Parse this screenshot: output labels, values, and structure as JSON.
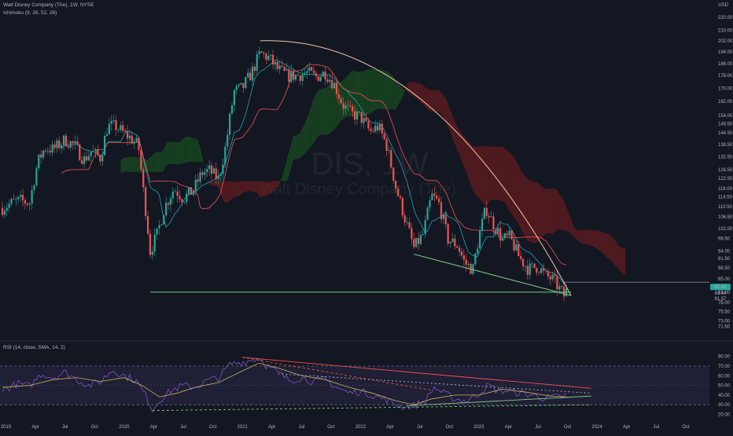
{
  "header": {
    "title": "Walt Disney Company (The), 1W, NYSE",
    "ichimoku_label": "Ichimoku (9, 26, 52, 26)",
    "rsi_label": "RSI (14, close, SMA, 14, 2)",
    "currency": "USD"
  },
  "watermark": {
    "symbol": "DIS, 1W",
    "name": "Walt Disney Company (The)"
  },
  "colors": {
    "background": "#131722",
    "candle_up": "#26a69a",
    "candle_down": "#ef5350",
    "kumo_bull": "#1b5e20",
    "kumo_bear": "#7f1d1d",
    "tenkan": "#26c6da",
    "kijun": "#ef5350",
    "trend_top": "#f5c6a5",
    "trend_bottom": "#81c784",
    "rsi_line": "#7e57c2",
    "rsi_ma": "#c9b458",
    "rsi_band": "#7e57c2",
    "price_badge": "#26a69a"
  },
  "chart_data": [
    {
      "type": "candlestick",
      "title": "Walt Disney Company (The), 1W, NYSE",
      "ylabel": "USD",
      "scale": "log",
      "ylim": [
        69,
        220
      ],
      "y_ticks": [
        71.5,
        73.0,
        75.5,
        78.0,
        81.0,
        85.0,
        88.5,
        91.5,
        94.0,
        98.5,
        102.0,
        106.5,
        110.5,
        114.5,
        118.0,
        122.5,
        126.5,
        132.5,
        138.5,
        144.5,
        149.5,
        154.0,
        162.0,
        170.0,
        178.0,
        186.0,
        194.0,
        202.0,
        210.0,
        220.0
      ],
      "x_ticks": [
        "2019",
        "Apr",
        "Jul",
        "Oct",
        "2020",
        "Apr",
        "Jul",
        "Oct",
        "2021",
        "Apr",
        "Jul",
        "Oct",
        "2022",
        "Apr",
        "Jul",
        "Oct",
        "2023",
        "Apr",
        "Jul",
        "Oct",
        "2024",
        "Apr",
        "Jul",
        "Oct"
      ],
      "xlim": [
        2018.95,
        2024.95
      ],
      "close_path": [
        [
          2018.97,
          110
        ],
        [
          2019.05,
          112
        ],
        [
          2019.12,
          113
        ],
        [
          2019.2,
          112
        ],
        [
          2019.27,
          130
        ],
        [
          2019.33,
          137
        ],
        [
          2019.4,
          136
        ],
        [
          2019.5,
          141
        ],
        [
          2019.58,
          138
        ],
        [
          2019.66,
          131
        ],
        [
          2019.72,
          135
        ],
        [
          2019.8,
          132
        ],
        [
          2019.86,
          148
        ],
        [
          2019.93,
          148
        ],
        [
          2020.0,
          144
        ],
        [
          2020.05,
          142
        ],
        [
          2020.12,
          138
        ],
        [
          2020.16,
          118
        ],
        [
          2020.22,
          94
        ],
        [
          2020.28,
          100
        ],
        [
          2020.34,
          110
        ],
        [
          2020.42,
          118
        ],
        [
          2020.5,
          114
        ],
        [
          2020.58,
          117
        ],
        [
          2020.66,
          125
        ],
        [
          2020.72,
          126
        ],
        [
          2020.8,
          122
        ],
        [
          2020.86,
          138
        ],
        [
          2020.93,
          168
        ],
        [
          2021.0,
          170
        ],
        [
          2021.08,
          180
        ],
        [
          2021.15,
          193
        ],
        [
          2021.22,
          190
        ],
        [
          2021.3,
          182
        ],
        [
          2021.38,
          178
        ],
        [
          2021.46,
          178
        ],
        [
          2021.55,
          180
        ],
        [
          2021.62,
          177
        ],
        [
          2021.7,
          180
        ],
        [
          2021.78,
          172
        ],
        [
          2021.85,
          160
        ],
        [
          2021.92,
          155
        ],
        [
          2022.0,
          153
        ],
        [
          2022.08,
          145
        ],
        [
          2022.15,
          148
        ],
        [
          2022.22,
          138
        ],
        [
          2022.3,
          118
        ],
        [
          2022.38,
          105
        ],
        [
          2022.45,
          95
        ],
        [
          2022.53,
          100
        ],
        [
          2022.6,
          115
        ],
        [
          2022.66,
          112
        ],
        [
          2022.74,
          98
        ],
        [
          2022.82,
          96
        ],
        [
          2022.88,
          90
        ],
        [
          2022.95,
          88
        ],
        [
          2023.0,
          99
        ],
        [
          2023.06,
          110
        ],
        [
          2023.12,
          104
        ],
        [
          2023.2,
          98
        ],
        [
          2023.26,
          99
        ],
        [
          2023.34,
          92
        ],
        [
          2023.42,
          88
        ],
        [
          2023.5,
          89
        ],
        [
          2023.56,
          86
        ],
        [
          2023.62,
          85
        ],
        [
          2023.68,
          82
        ],
        [
          2023.72,
          80
        ],
        [
          2023.75,
          82
        ]
      ],
      "last_price": 82.32,
      "price_labels": [
        "82.32",
        "83.04",
        "81.57"
      ],
      "annotations": [
        {
          "name": "descending-trendline",
          "from": [
            2021.15,
            202
          ],
          "to": [
            2023.78,
            80
          ]
        },
        {
          "name": "lower-support-line",
          "from": [
            2022.45,
            93
          ],
          "to": [
            2023.78,
            80
          ]
        },
        {
          "name": "horizontal-support",
          "from": [
            2020.22,
            81
          ],
          "to": [
            2023.78,
            81
          ]
        }
      ]
    },
    {
      "type": "line",
      "title": "RSI (14, close, SMA, 14, 2)",
      "ylim": [
        18,
        87
      ],
      "y_ticks": [
        20.0,
        30.0,
        40.0,
        50.0,
        60.0,
        70.0,
        80.0
      ],
      "bands": [
        30,
        70
      ],
      "rsi_path": [
        [
          2018.97,
          45
        ],
        [
          2019.1,
          52
        ],
        [
          2019.2,
          49
        ],
        [
          2019.3,
          62
        ],
        [
          2019.4,
          58
        ],
        [
          2019.5,
          64
        ],
        [
          2019.6,
          56
        ],
        [
          2019.7,
          50
        ],
        [
          2019.8,
          54
        ],
        [
          2019.9,
          66
        ],
        [
          2020.0,
          60
        ],
        [
          2020.1,
          55
        ],
        [
          2020.18,
          40
        ],
        [
          2020.24,
          25
        ],
        [
          2020.3,
          35
        ],
        [
          2020.4,
          45
        ],
        [
          2020.5,
          50
        ],
        [
          2020.6,
          48
        ],
        [
          2020.7,
          55
        ],
        [
          2020.8,
          58
        ],
        [
          2020.9,
          72
        ],
        [
          2021.0,
          74
        ],
        [
          2021.08,
          76
        ],
        [
          2021.14,
          79
        ],
        [
          2021.2,
          71
        ],
        [
          2021.3,
          63
        ],
        [
          2021.4,
          55
        ],
        [
          2021.5,
          58
        ],
        [
          2021.6,
          54
        ],
        [
          2021.7,
          56
        ],
        [
          2021.8,
          48
        ],
        [
          2021.9,
          42
        ],
        [
          2022.0,
          44
        ],
        [
          2022.1,
          40
        ],
        [
          2022.2,
          36
        ],
        [
          2022.3,
          30
        ],
        [
          2022.36,
          28
        ],
        [
          2022.45,
          29
        ],
        [
          2022.55,
          34
        ],
        [
          2022.62,
          48
        ],
        [
          2022.7,
          42
        ],
        [
          2022.8,
          36
        ],
        [
          2022.9,
          34
        ],
        [
          2023.0,
          42
        ],
        [
          2023.08,
          50
        ],
        [
          2023.15,
          45
        ],
        [
          2023.25,
          44
        ],
        [
          2023.35,
          42
        ],
        [
          2023.45,
          40
        ],
        [
          2023.55,
          37
        ],
        [
          2023.65,
          38
        ],
        [
          2023.75,
          39
        ]
      ],
      "ma_path": [
        [
          2018.97,
          48
        ],
        [
          2019.2,
          50
        ],
        [
          2019.4,
          56
        ],
        [
          2019.6,
          58
        ],
        [
          2019.8,
          54
        ],
        [
          2020.0,
          58
        ],
        [
          2020.15,
          50
        ],
        [
          2020.3,
          38
        ],
        [
          2020.45,
          42
        ],
        [
          2020.6,
          48
        ],
        [
          2020.8,
          53
        ],
        [
          2021.0,
          65
        ],
        [
          2021.14,
          73
        ],
        [
          2021.3,
          68
        ],
        [
          2021.5,
          60
        ],
        [
          2021.7,
          56
        ],
        [
          2021.9,
          48
        ],
        [
          2022.1,
          42
        ],
        [
          2022.3,
          34
        ],
        [
          2022.45,
          30
        ],
        [
          2022.6,
          36
        ],
        [
          2022.8,
          40
        ],
        [
          2023.0,
          40
        ],
        [
          2023.2,
          46
        ],
        [
          2023.4,
          43
        ],
        [
          2023.6,
          39
        ],
        [
          2023.75,
          38
        ]
      ],
      "annotations": [
        {
          "name": "rsi-upper-trendline",
          "from": [
            2021.0,
            79
          ],
          "to": [
            2023.95,
            47
          ]
        },
        {
          "name": "rsi-upper-dashed",
          "from": [
            2021.0,
            79
          ],
          "to": [
            2022.6,
            45
          ]
        },
        {
          "name": "rsi-lower-trendline",
          "from": [
            2022.4,
            29
          ],
          "to": [
            2023.95,
            39
          ]
        },
        {
          "name": "rsi-base-dashed",
          "from": [
            2020.24,
            24
          ],
          "to": [
            2023.95,
            30
          ]
        },
        {
          "name": "rsi-mid-dashed",
          "from": [
            2021.3,
            62
          ],
          "to": [
            2023.95,
            42
          ]
        }
      ]
    }
  ]
}
